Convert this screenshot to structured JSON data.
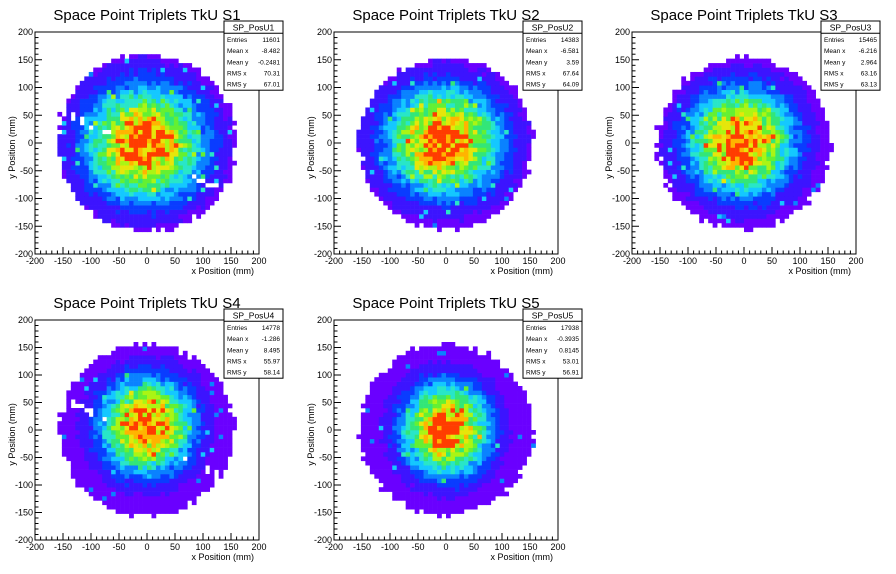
{
  "panels": [
    {
      "title": "Space Point Triplets TkU S1",
      "stats": {
        "name": "SP_PosU1",
        "rows": [
          [
            "Entries",
            "11601"
          ],
          [
            "Mean x",
            "-8.482"
          ],
          [
            "Mean y",
            "-0.2481"
          ],
          [
            "RMS x",
            "70.31"
          ],
          [
            "RMS y",
            "67.01"
          ]
        ]
      }
    },
    {
      "title": "Space Point Triplets TkU S2",
      "stats": {
        "name": "SP_PosU2",
        "rows": [
          [
            "Entries",
            "14383"
          ],
          [
            "Mean x",
            "-6.581"
          ],
          [
            "Mean y",
            "3.59"
          ],
          [
            "RMS x",
            "67.64"
          ],
          [
            "RMS y",
            "64.09"
          ]
        ]
      }
    },
    {
      "title": "Space Point Triplets TkU S3",
      "stats": {
        "name": "SP_PosU3",
        "rows": [
          [
            "Entries",
            "15465"
          ],
          [
            "Mean x",
            "-6.216"
          ],
          [
            "Mean y",
            "2.964"
          ],
          [
            "RMS x",
            "63.16"
          ],
          [
            "RMS y",
            "63.13"
          ]
        ]
      }
    },
    {
      "title": "Space Point Triplets TkU S4",
      "stats": {
        "name": "SP_PosU4",
        "rows": [
          [
            "Entries",
            "14778"
          ],
          [
            "Mean x",
            "-1.286"
          ],
          [
            "Mean y",
            "8.495"
          ],
          [
            "RMS x",
            "55.97"
          ],
          [
            "RMS y",
            "58.14"
          ]
        ]
      }
    },
    {
      "title": "Space Point Triplets TkU S5",
      "stats": {
        "name": "SP_PosU5",
        "rows": [
          [
            "Entries",
            "17938"
          ],
          [
            "Mean x",
            "-0.3935"
          ],
          [
            "Mean y",
            "0.8145"
          ],
          [
            "RMS x",
            "53.01"
          ],
          [
            "RMS y",
            "56.91"
          ]
        ]
      }
    }
  ],
  "chart_data": [
    {
      "type": "heatmap",
      "title": "Space Point Triplets TkU S1",
      "xlabel": "x Position (mm)",
      "ylabel": "y Position (mm)",
      "xlim": [
        -200,
        200
      ],
      "ylim": [
        -200,
        200
      ],
      "xticks": [
        -200,
        -150,
        -100,
        -50,
        0,
        50,
        100,
        150,
        200
      ],
      "yticks": [
        -200,
        -150,
        -100,
        -50,
        0,
        50,
        100,
        150,
        200
      ],
      "footprint_radius": 165,
      "stats": {
        "entries": 11601,
        "mean_x": -8.482,
        "mean_y": -0.2481,
        "rms_x": 70.31,
        "rms_y": 67.01
      }
    },
    {
      "type": "heatmap",
      "title": "Space Point Triplets TkU S2",
      "xlabel": "x Position (mm)",
      "ylabel": "y Position (mm)",
      "xlim": [
        -200,
        200
      ],
      "ylim": [
        -200,
        200
      ],
      "xticks": [
        -200,
        -150,
        -100,
        -50,
        0,
        50,
        100,
        150,
        200
      ],
      "yticks": [
        -200,
        -150,
        -100,
        -50,
        0,
        50,
        100,
        150,
        200
      ],
      "footprint_radius": 160,
      "stats": {
        "entries": 14383,
        "mean_x": -6.581,
        "mean_y": 3.59,
        "rms_x": 67.64,
        "rms_y": 64.09
      }
    },
    {
      "type": "heatmap",
      "title": "Space Point Triplets TkU S3",
      "xlabel": "x Position (mm)",
      "ylabel": "y Position (mm)",
      "xlim": [
        -200,
        200
      ],
      "ylim": [
        -200,
        200
      ],
      "xticks": [
        -200,
        -150,
        -100,
        -50,
        0,
        50,
        100,
        150,
        200
      ],
      "yticks": [
        -200,
        -150,
        -100,
        -50,
        0,
        50,
        100,
        150,
        200
      ],
      "footprint_radius": 160,
      "stats": {
        "entries": 15465,
        "mean_x": -6.216,
        "mean_y": 2.964,
        "rms_x": 63.16,
        "rms_y": 63.13
      }
    },
    {
      "type": "heatmap",
      "title": "Space Point Triplets TkU S4",
      "xlabel": "x Position (mm)",
      "ylabel": "y Position (mm)",
      "xlim": [
        -200,
        200
      ],
      "ylim": [
        -200,
        200
      ],
      "xticks": [
        -200,
        -150,
        -100,
        -50,
        0,
        50,
        100,
        150,
        200
      ],
      "yticks": [
        -200,
        -150,
        -100,
        -50,
        0,
        50,
        100,
        150,
        200
      ],
      "footprint_radius": 160,
      "stats": {
        "entries": 14778,
        "mean_x": -1.286,
        "mean_y": 8.495,
        "rms_x": 55.97,
        "rms_y": 58.14
      }
    },
    {
      "type": "heatmap",
      "title": "Space Point Triplets TkU S5",
      "xlabel": "x Position (mm)",
      "ylabel": "y Position (mm)",
      "xlim": [
        -200,
        200
      ],
      "ylim": [
        -200,
        200
      ],
      "xticks": [
        -200,
        -150,
        -100,
        -50,
        0,
        50,
        100,
        150,
        200
      ],
      "yticks": [
        -200,
        -150,
        -100,
        -50,
        0,
        50,
        100,
        150,
        200
      ],
      "footprint_radius": 160,
      "stats": {
        "entries": 17938,
        "mean_x": -0.3935,
        "mean_y": 0.8145,
        "rms_x": 53.01,
        "rms_y": 56.91
      }
    }
  ],
  "colors": {
    "palette": [
      "#6a00ff",
      "#3c14ff",
      "#0a3cff",
      "#0a82ff",
      "#14c8ff",
      "#28e6c8",
      "#32e678",
      "#64f032",
      "#aaf514",
      "#e6e60a",
      "#ffb400",
      "#ff3c00"
    ]
  }
}
